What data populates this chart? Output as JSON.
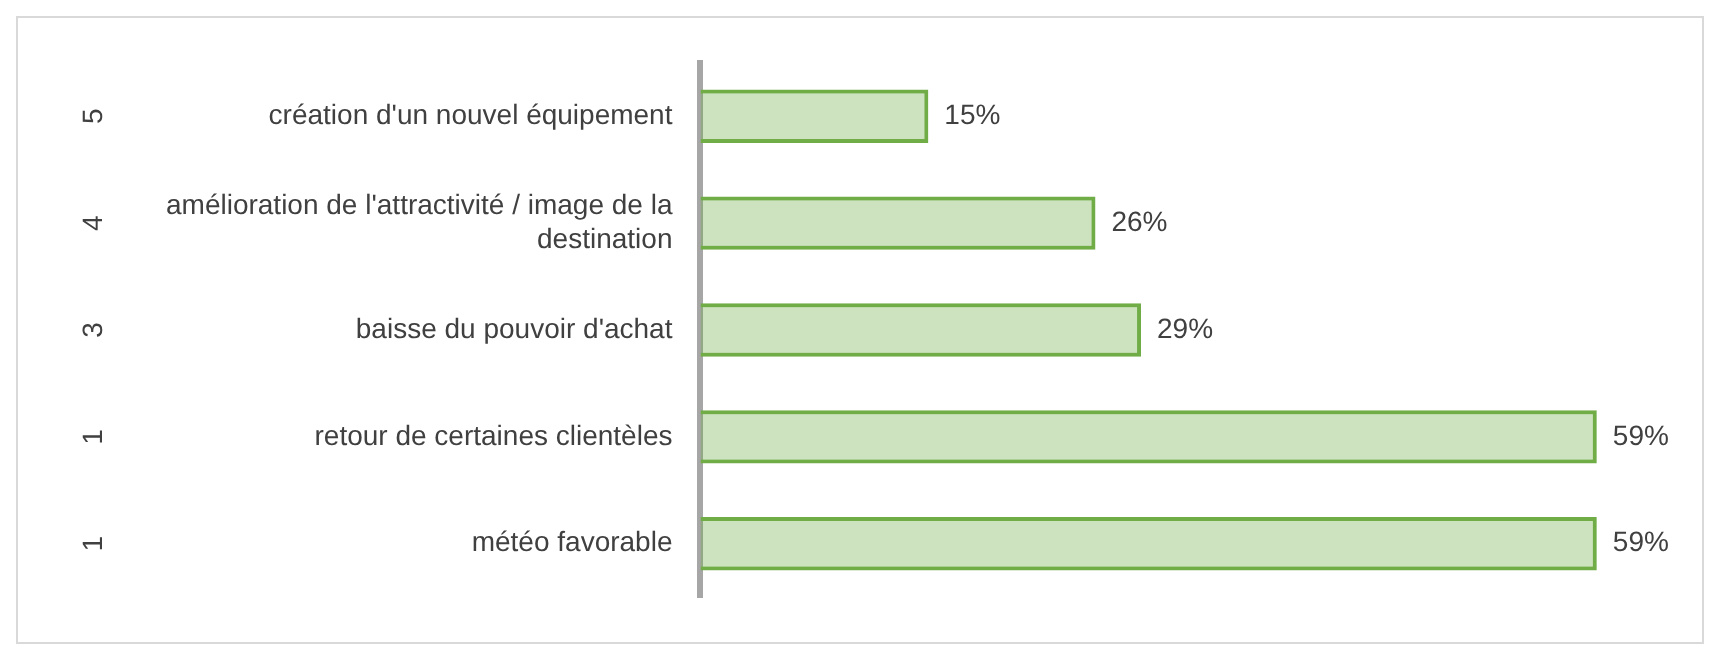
{
  "chart_data": {
    "type": "bar",
    "orientation": "horizontal",
    "categories": [
      "création d'un nouvel équipement",
      "amélioration de l'attractivité / image de la destination",
      "baisse du pouvoir d'achat",
      "retour de certaines clientèles",
      "météo favorable"
    ],
    "series": [
      {
        "color": "#70ad47",
        "values": [
          15,
          26,
          29,
          59,
          59
        ],
        "value_labels": [
          "15%",
          "26%",
          "29%",
          "59%",
          "59%"
        ]
      }
    ],
    "annotations": [
      "5",
      "4",
      "3",
      "1",
      "1"
    ],
    "legend": false
  }
}
